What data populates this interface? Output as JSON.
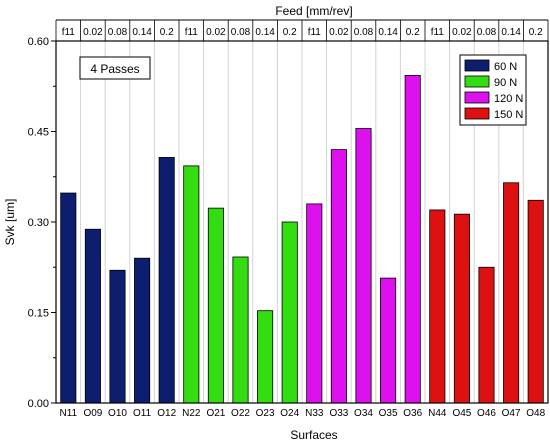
{
  "chart_data": {
    "type": "bar",
    "title": "",
    "top_axis_label": "Feed [mm/rev]",
    "xlabel": "Surfaces",
    "ylabel": "Svk [um]",
    "ylim": [
      0.0,
      0.6
    ],
    "yticks": [
      "0.00",
      "0.15",
      "0.30",
      "0.45",
      "0.60"
    ],
    "annotation": "4 Passes",
    "categories": [
      "N11",
      "O09",
      "O10",
      "O11",
      "O12",
      "N22",
      "O21",
      "O22",
      "O23",
      "O24",
      "N33",
      "O33",
      "O34",
      "O35",
      "O36",
      "N44",
      "O45",
      "O46",
      "O47",
      "O48"
    ],
    "feed_labels": [
      "f11",
      "0.02",
      "0.08",
      "0.14",
      "0.2",
      "f11",
      "0.02",
      "0.08",
      "0.14",
      "0.2",
      "f11",
      "0.02",
      "0.08",
      "0.14",
      "0.2",
      "f11",
      "0.02",
      "0.08",
      "0.14",
      "0.2"
    ],
    "values": [
      0.348,
      0.288,
      0.22,
      0.24,
      0.407,
      0.393,
      0.323,
      0.242,
      0.153,
      0.3,
      0.33,
      0.42,
      0.455,
      0.207,
      0.543,
      0.32,
      0.313,
      0.225,
      0.365,
      0.336
    ],
    "group_of": [
      0,
      0,
      0,
      0,
      0,
      1,
      1,
      1,
      1,
      1,
      2,
      2,
      2,
      2,
      2,
      3,
      3,
      3,
      3,
      3
    ],
    "series": [
      {
        "name": "60 N",
        "color": "#0e1e6e"
      },
      {
        "name": "90 N",
        "color": "#33dd11"
      },
      {
        "name": "120 N",
        "color": "#dd11ee"
      },
      {
        "name": "150 N",
        "color": "#dd1111"
      }
    ],
    "grid": true,
    "legend_position": "top-right"
  }
}
